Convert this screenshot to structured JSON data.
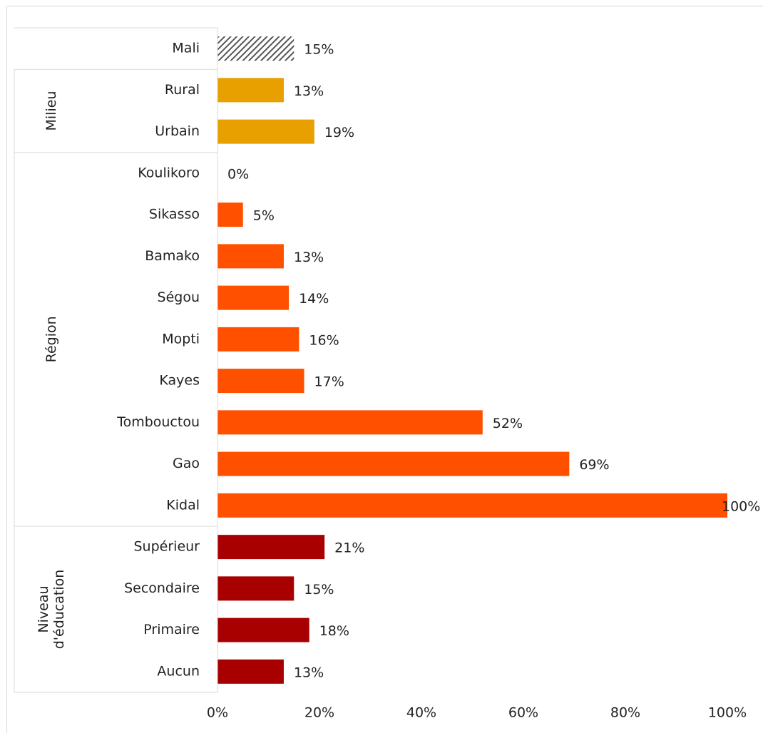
{
  "chart_data": {
    "type": "bar",
    "orientation": "horizontal",
    "groups": [
      {
        "categories": [
          "Mali"
        ],
        "values": [
          15
        ],
        "value_labels": [
          "15%"
        ],
        "color": "#555555",
        "pattern": "hatch"
      },
      {
        "label": [
          "Milieu"
        ],
        "categories": [
          "Rural",
          "Urbain"
        ],
        "values": [
          13,
          19
        ],
        "value_labels": [
          "13%",
          "19%"
        ],
        "color": "#e8a000"
      },
      {
        "label": [
          "Région"
        ],
        "categories": [
          "Koulikoro",
          "Sikasso",
          "Bamako",
          "Ségou",
          "Mopti",
          "Kayes",
          "Tombouctou",
          "Gao",
          "Kidal"
        ],
        "values": [
          0,
          5,
          13,
          14,
          16,
          17,
          52,
          69,
          100
        ],
        "value_labels": [
          "0%",
          "5%",
          "13%",
          "14%",
          "16%",
          "17%",
          "52%",
          "69%",
          "100%"
        ],
        "color": "#ff5000"
      },
      {
        "label": [
          "Niveau",
          "d'éducation"
        ],
        "categories": [
          "Supérieur",
          "Secondaire",
          "Primaire",
          "Aucun"
        ],
        "values": [
          21,
          15,
          18,
          13
        ],
        "value_labels": [
          "21%",
          "15%",
          "18%",
          "13%"
        ],
        "color": "#a80000"
      }
    ],
    "xlim": [
      0,
      100
    ],
    "xticks": [
      {
        "value": 0,
        "label": "0%"
      },
      {
        "value": 20,
        "label": "20%"
      },
      {
        "value": 40,
        "label": "40%"
      },
      {
        "value": 60,
        "label": "60%"
      },
      {
        "value": 80,
        "label": "80%"
      },
      {
        "value": 100,
        "label": "100%"
      }
    ]
  }
}
